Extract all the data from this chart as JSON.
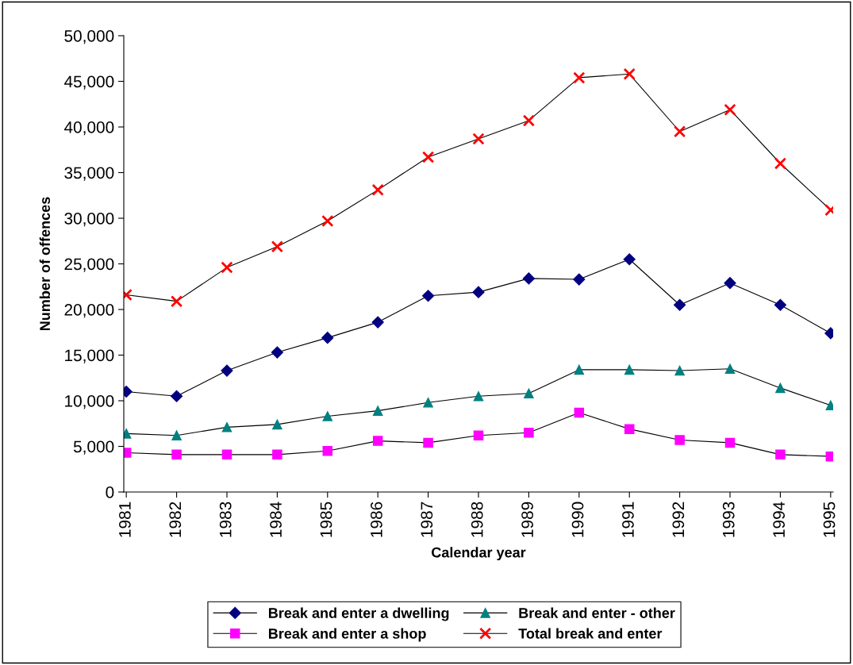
{
  "chart_data": {
    "type": "line",
    "xlabel": "Calendar year",
    "ylabel": "Number of offences",
    "categories": [
      "1981",
      "1982",
      "1983",
      "1984",
      "1985",
      "1986",
      "1987",
      "1988",
      "1989",
      "1990",
      "1991",
      "1992",
      "1993",
      "1994",
      "1995"
    ],
    "series": [
      {
        "name": "Break and enter a dwelling",
        "color": "#000080",
        "marker": "diamond",
        "values": [
          11000,
          10500,
          13300,
          15300,
          16900,
          18600,
          21500,
          21900,
          23400,
          23300,
          25500,
          20500,
          22900,
          20500,
          17400
        ]
      },
      {
        "name": "Break and enter a shop",
        "color": "#ff00ff",
        "marker": "square",
        "values": [
          4300,
          4100,
          4100,
          4100,
          4500,
          5600,
          5400,
          6200,
          6500,
          8700,
          6900,
          5700,
          5400,
          4100,
          3900
        ]
      },
      {
        "name": "Break and enter - other",
        "color": "#008080",
        "marker": "triangle",
        "values": [
          6400,
          6200,
          7100,
          7400,
          8300,
          8900,
          9800,
          10500,
          10800,
          13400,
          13400,
          13300,
          13500,
          11400,
          9500
        ]
      },
      {
        "name": "Total break and enter",
        "color": "#ff0000",
        "marker": "cross",
        "values": [
          21600,
          20900,
          24600,
          26900,
          29700,
          33100,
          36700,
          38700,
          40700,
          45400,
          45800,
          39500,
          41900,
          36000,
          30900
        ]
      }
    ],
    "ylim": [
      0,
      50000
    ],
    "yticks": [
      {
        "value": 0,
        "label": "0"
      },
      {
        "value": 5000,
        "label": "5,000"
      },
      {
        "value": 10000,
        "label": "10,000"
      },
      {
        "value": 15000,
        "label": "15,000"
      },
      {
        "value": 20000,
        "label": "20,000"
      },
      {
        "value": 25000,
        "label": "25,000"
      },
      {
        "value": 30000,
        "label": "30,000"
      },
      {
        "value": 35000,
        "label": "35,000"
      },
      {
        "value": 40000,
        "label": "40,000"
      },
      {
        "value": 45000,
        "label": "45,000"
      },
      {
        "value": 50000,
        "label": "50,000"
      }
    ],
    "grid": false,
    "legend": "bottom",
    "line_style": "solid"
  }
}
